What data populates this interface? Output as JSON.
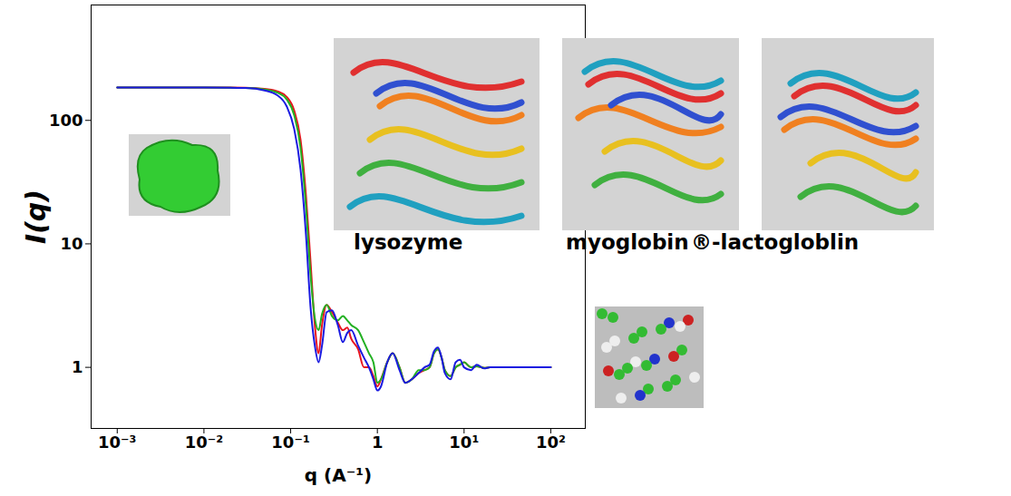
{
  "chart_data": {
    "type": "line",
    "log": true,
    "grid": false,
    "xlabel": "q (A⁻¹)",
    "ylabel": "I(q)",
    "xlim": [
      0.0005,
      250
    ],
    "ylim": [
      0.32,
      860
    ],
    "xticks": [
      {
        "value": 0.001,
        "label": "10⁻³"
      },
      {
        "value": 0.01,
        "label": "10⁻²"
      },
      {
        "value": 0.1,
        "label": "10⁻¹"
      },
      1,
      {
        "value": 10,
        "label": "10¹"
      },
      {
        "value": 100,
        "label": "10²"
      }
    ],
    "yticks": [
      1,
      10,
      100
    ],
    "x": [
      0.001,
      0.01,
      0.03,
      0.05,
      0.07,
      0.09,
      0.11,
      0.13,
      0.15,
      0.17,
      0.19,
      0.21,
      0.23,
      0.26,
      0.3,
      0.35,
      0.4,
      0.45,
      0.5,
      0.6,
      0.7,
      0.8,
      0.9,
      1,
      1.1,
      1.3,
      1.5,
      1.8,
      2.1,
      2.5,
      3,
      3.5,
      4,
      4.5,
      5,
      5.5,
      6,
      7,
      8,
      9,
      10,
      12,
      14,
      17,
      20,
      30,
      50,
      100
    ],
    "series": [
      {
        "color": "#e8141e",
        "values": [
          185,
          185,
          184,
          180,
          172,
          155,
          120,
          70,
          25,
          7,
          2.2,
          1.3,
          2.2,
          3.2,
          2.8,
          2.3,
          2.0,
          2.1,
          1.7,
          1.4,
          1.0,
          1.0,
          0.85,
          0.7,
          0.8,
          1.1,
          1.3,
          1.0,
          0.75,
          0.8,
          0.9,
          0.95,
          1.0,
          1.3,
          1.4,
          1.2,
          0.95,
          0.85,
          1.0,
          1.05,
          1.1,
          1.0,
          1.02,
          0.99,
          1.0,
          1.0,
          1.0,
          1.0
        ]
      },
      {
        "color": "#22b022",
        "values": [
          185,
          185,
          183,
          178,
          168,
          148,
          110,
          60,
          20,
          5.5,
          2.5,
          2.0,
          2.7,
          3.2,
          2.6,
          2.4,
          2.6,
          2.4,
          2.2,
          2.0,
          1.6,
          1.3,
          1.1,
          0.75,
          0.8,
          1.1,
          1.3,
          1.0,
          0.75,
          0.8,
          0.95,
          0.95,
          1.0,
          1.3,
          1.4,
          1.2,
          0.95,
          0.85,
          1.0,
          1.05,
          1.1,
          1.0,
          1.02,
          0.99,
          1.0,
          1.0,
          1.0,
          1.0
        ]
      },
      {
        "color": "#1a1ae0",
        "values": [
          185,
          185,
          183,
          175,
          160,
          130,
          85,
          40,
          12,
          3,
          1.5,
          1.1,
          1.5,
          2.8,
          2.9,
          2.2,
          1.6,
          1.9,
          2.0,
          1.5,
          1.2,
          1.0,
          0.8,
          0.65,
          0.7,
          1.1,
          1.3,
          0.95,
          0.75,
          0.8,
          0.9,
          1.0,
          1.05,
          1.35,
          1.45,
          1.2,
          0.9,
          0.8,
          1.1,
          1.15,
          1.0,
          0.95,
          1.05,
          0.98,
          1.0,
          1.0,
          1.0,
          1.0
        ]
      }
    ],
    "annotations": [
      "lysozyme",
      "myoglobin",
      "®-lactogloblin"
    ]
  }
}
